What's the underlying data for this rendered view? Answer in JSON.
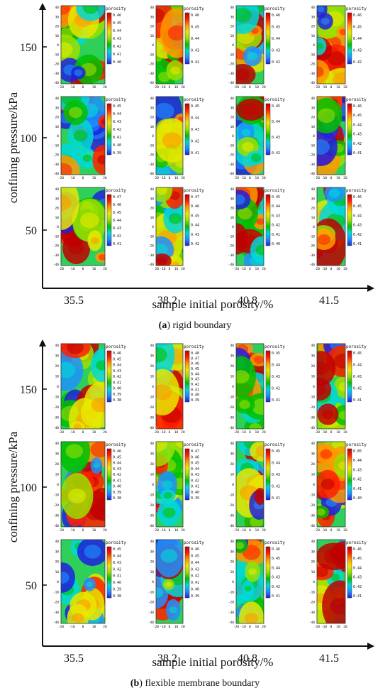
{
  "chart_data": [
    {
      "type": "heatmap",
      "panel_label": "(a)",
      "caption": "rigid boundary",
      "xlabel": "sample initial porosity/%",
      "ylabel": "confining pressure/kPa",
      "x_categories": [
        "35.5",
        "38.2",
        "40.8",
        "41.5"
      ],
      "y_categories": [
        "150",
        "100",
        "50"
      ],
      "cell_x_ticks": [
        "-20",
        "-10",
        "0",
        "10",
        "20"
      ],
      "cell_y_ticks": [
        "40",
        "30",
        "20",
        "10",
        "0",
        "-10",
        "-20",
        "-30",
        "-40"
      ],
      "colorbar_title": "porosity",
      "cells": [
        {
          "row": "150",
          "col": "35.5",
          "colorbar": [
            "0.46",
            "0.45",
            "0.44",
            "0.43",
            "0.42",
            "0.41",
            "0.40"
          ]
        },
        {
          "row": "150",
          "col": "38.2",
          "colorbar": [
            "0.46",
            "0.45",
            "0.44",
            "0.43",
            "0.42"
          ]
        },
        {
          "row": "150",
          "col": "40.8",
          "colorbar": [
            "0.46",
            "0.45",
            "0.44",
            "0.43",
            "0.42"
          ]
        },
        {
          "row": "150",
          "col": "41.5",
          "colorbar": [
            "0.46",
            "0.45",
            "0.44",
            "0.43",
            "0.42"
          ]
        },
        {
          "row": "100",
          "col": "35.5",
          "colorbar": [
            "0.45",
            "0.44",
            "0.43",
            "0.42",
            "0.41",
            "0.40",
            "0.39"
          ]
        },
        {
          "row": "100",
          "col": "38.2",
          "colorbar": [
            "0.45",
            "0.44",
            "0.43",
            "0.42",
            "0.41"
          ]
        },
        {
          "row": "100",
          "col": "40.8",
          "colorbar": [
            "0.45",
            "0.44",
            "0.43",
            "0.42"
          ]
        },
        {
          "row": "100",
          "col": "41.5",
          "colorbar": [
            "0.46",
            "0.45",
            "0.44",
            "0.43",
            "0.42",
            "0.41"
          ]
        },
        {
          "row": "50",
          "col": "35.5",
          "colorbar": [
            "0.47",
            "0.46",
            "0.45",
            "0.44",
            "0.43",
            "0.42",
            "0.41"
          ]
        },
        {
          "row": "50",
          "col": "38.2",
          "colorbar": [
            "0.47",
            "0.46",
            "0.45",
            "0.44",
            "0.43",
            "0.42"
          ]
        },
        {
          "row": "50",
          "col": "40.8",
          "colorbar": [
            "0.45",
            "0.44",
            "0.43",
            "0.42",
            "0.41",
            "0.40"
          ]
        },
        {
          "row": "50",
          "col": "41.5",
          "colorbar": [
            "0.46",
            "0.45",
            "0.44",
            "0.43",
            "0.42",
            "0.41"
          ]
        }
      ]
    },
    {
      "type": "heatmap",
      "panel_label": "(b)",
      "caption": "flexible membrane boundary",
      "xlabel": "sample initial porosity/%",
      "ylabel": "confining pressure/kPa",
      "x_categories": [
        "35.5",
        "38.2",
        "40.8",
        "41.5"
      ],
      "y_categories": [
        "150",
        "100",
        "50"
      ],
      "cell_x_ticks": [
        "-20",
        "-10",
        "0",
        "10",
        "20"
      ],
      "cell_y_ticks": [
        "40",
        "30",
        "20",
        "10",
        "0",
        "-10",
        "-20",
        "-30",
        "-40"
      ],
      "colorbar_title": "porosity",
      "cells": [
        {
          "row": "150",
          "col": "35.5",
          "colorbar": [
            "0.46",
            "0.45",
            "0.44",
            "0.43",
            "0.42",
            "0.41",
            "0.40",
            "0.39",
            "0.38"
          ]
        },
        {
          "row": "150",
          "col": "38.2",
          "colorbar": [
            "0.48",
            "0.47",
            "0.46",
            "0.45",
            "0.44",
            "0.43",
            "0.42",
            "0.41",
            "0.40",
            "0.39"
          ]
        },
        {
          "row": "150",
          "col": "40.8",
          "colorbar": [
            "0.45",
            "0.44",
            "0.43",
            "0.42",
            "0.41"
          ]
        },
        {
          "row": "150",
          "col": "41.5",
          "colorbar": [
            "0.45",
            "0.44",
            "0.43",
            "0.42",
            "0.41"
          ]
        },
        {
          "row": "100",
          "col": "35.5",
          "colorbar": [
            "0.46",
            "0.45",
            "0.44",
            "0.43",
            "0.42",
            "0.41",
            "0.40",
            "0.39",
            "0.38"
          ]
        },
        {
          "row": "100",
          "col": "38.2",
          "colorbar": [
            "0.47",
            "0.46",
            "0.45",
            "0.44",
            "0.43",
            "0.42",
            "0.41",
            "0.40",
            "0.39"
          ]
        },
        {
          "row": "100",
          "col": "40.8",
          "colorbar": [
            "0.45",
            "0.44",
            "0.43",
            "0.42",
            "0.41"
          ]
        },
        {
          "row": "100",
          "col": "41.5",
          "colorbar": [
            "0.85",
            "0.44",
            "0.43",
            "0.42",
            "0.41",
            "0.40"
          ]
        },
        {
          "row": "50",
          "col": "35.5",
          "colorbar": [
            "0.45",
            "0.44",
            "0.43",
            "0.42",
            "0.41",
            "0.40",
            "0.39",
            "0.38"
          ]
        },
        {
          "row": "50",
          "col": "38.2",
          "colorbar": [
            "0.46",
            "0.45",
            "0.44",
            "0.43",
            "0.42",
            "0.41",
            "0.40",
            "0.39"
          ]
        },
        {
          "row": "50",
          "col": "40.8",
          "colorbar": [
            "0.46",
            "0.45",
            "0.44",
            "0.43",
            "0.42",
            "0.41"
          ]
        },
        {
          "row": "50",
          "col": "41.5",
          "colorbar": [
            "0.46",
            "0.45",
            "0.44",
            "0.43",
            "0.42",
            "0.41"
          ]
        }
      ]
    }
  ],
  "colors": {
    "colormap": [
      "#2020e0",
      "#1e90ff",
      "#00d8d8",
      "#00c000",
      "#9be000",
      "#e8e800",
      "#ff9900",
      "#ff2000",
      "#c00000"
    ],
    "axis": "#111111"
  }
}
